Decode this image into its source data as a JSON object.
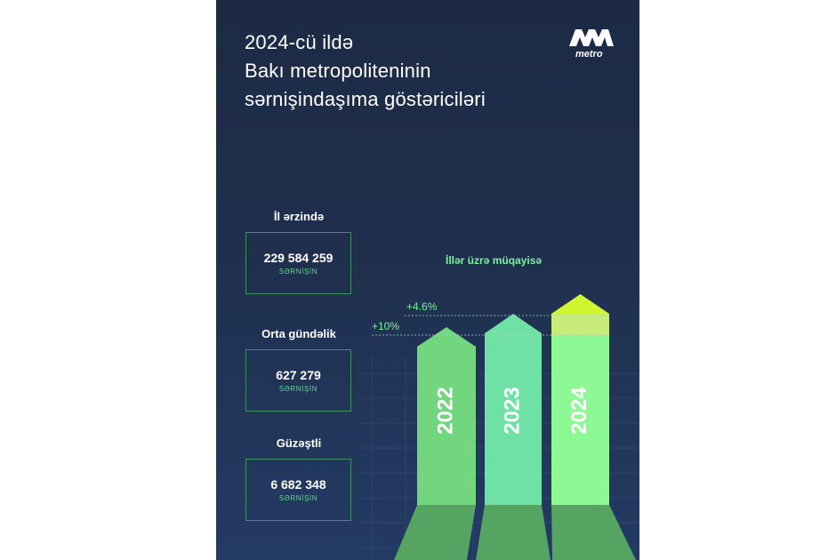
{
  "title_lines": [
    "2024-cü ildə",
    "Bakı metropoliteninin",
    "sərnişindaşıma göstəriciləri"
  ],
  "logo": {
    "text": "metro",
    "color": "#ffffff"
  },
  "stats": [
    {
      "label": "İl ərzində",
      "value": "229 584 259",
      "unit": "SƏRNİŞİN"
    },
    {
      "label": "Orta gündəlik",
      "value": "627 279",
      "unit": "SƏRNİŞİN"
    },
    {
      "label": "Güzəştli",
      "value": "6 682 348",
      "unit": "SƏRNİŞİN"
    }
  ],
  "colors": {
    "background": "#1f2f4d",
    "accent_green": "#5fdc8e",
    "bar_2022": "#72d67f",
    "bar_2023": "#6fe1a4",
    "bar_2024": "#8ef894",
    "tip_2024": "#d2f531"
  },
  "chart_data": {
    "type": "bar",
    "title": "İllər üzrə müqayisə",
    "categories": [
      "2022",
      "2023",
      "2024"
    ],
    "growth_labels": [
      "+10%",
      "+4.6%"
    ]
  }
}
